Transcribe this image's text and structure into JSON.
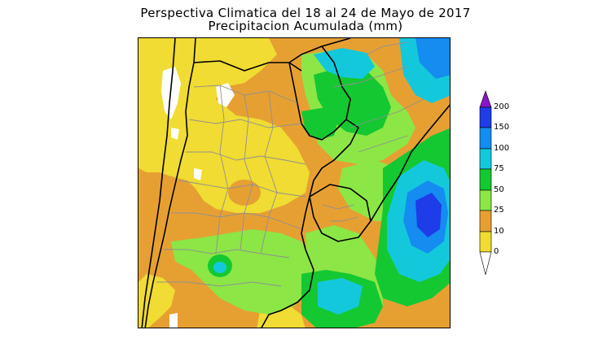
{
  "title": {
    "line1": "Perspectiva Climatica del 18 al 24 de Mayo de 2017",
    "line2": "Precipitacion Acumulada (mm)"
  },
  "legend": {
    "labels": [
      "200",
      "150",
      "100",
      "75",
      "50",
      "25",
      "10",
      "0"
    ],
    "colors": [
      "#1e3ce8",
      "#148cf0",
      "#14c8dc",
      "#14c832",
      "#8ce646",
      "#e6a032",
      "#f0dc32",
      "#ffffff"
    ],
    "top_color": "#8c14c8"
  },
  "map": {
    "colors": {
      "c0_10": "#f0dc32",
      "c10_25": "#e6a032",
      "c25_50": "#8ce646",
      "c50_75": "#14c832",
      "c75_100": "#14c8dc",
      "c100_150": "#148cf0",
      "c150_200": "#1e3ce8",
      "none": "#ffffff",
      "border": "#000000",
      "province": "#909090"
    }
  }
}
